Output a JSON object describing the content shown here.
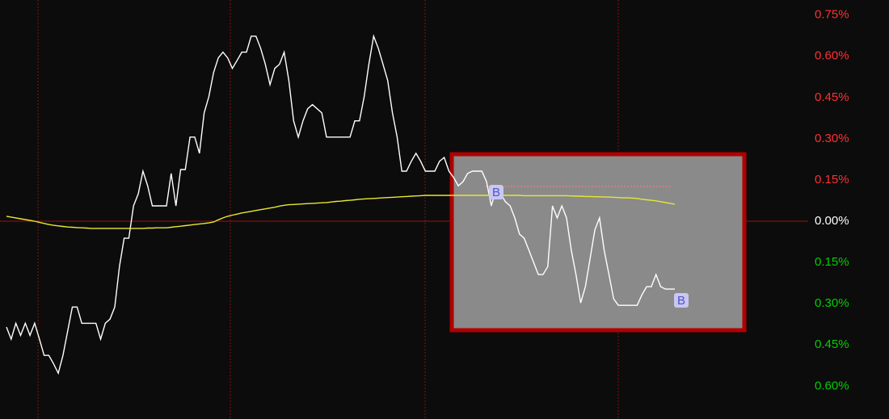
{
  "chart_data": {
    "type": "line",
    "ylim": [
      -0.69,
      0.79
    ],
    "yticks": [
      {
        "value": 0.75,
        "label": "0.75%"
      },
      {
        "value": 0.6,
        "label": "0.60%"
      },
      {
        "value": 0.45,
        "label": "0.45%"
      },
      {
        "value": 0.3,
        "label": "0.30%"
      },
      {
        "value": 0.15,
        "label": "0.15%"
      },
      {
        "value": 0,
        "label": "0.00%"
      },
      {
        "value": -0.15,
        "label": "0.15%"
      },
      {
        "value": -0.3,
        "label": "0.30%"
      },
      {
        "value": -0.45,
        "label": "0.45%"
      },
      {
        "value": -0.6,
        "label": "0.60%"
      }
    ],
    "positive_color": "#ff3030",
    "negative_color": "#00d000",
    "zero_color": "#ffffff",
    "annotations": [
      "B",
      "B"
    ],
    "series": [
      {
        "color": "#ffffff",
        "values": [
          -0.385,
          -0.429,
          -0.371,
          -0.415,
          -0.371,
          -0.415,
          -0.371,
          -0.429,
          -0.488,
          -0.488,
          -0.518,
          -0.553,
          -0.488,
          -0.4,
          -0.312,
          -0.312,
          -0.371,
          -0.371,
          -0.371,
          -0.371,
          -0.429,
          -0.371,
          -0.356,
          -0.312,
          -0.165,
          -0.062,
          -0.062,
          0.056,
          0.1,
          0.182,
          0.129,
          0.056,
          0.056,
          0.056,
          0.056,
          0.174,
          0.056,
          0.188,
          0.188,
          0.306,
          0.306,
          0.247,
          0.394,
          0.453,
          0.541,
          0.594,
          0.615,
          0.594,
          0.556,
          0.585,
          0.615,
          0.615,
          0.673,
          0.673,
          0.629,
          0.571,
          0.497,
          0.556,
          0.571,
          0.615,
          0.512,
          0.365,
          0.306,
          0.365,
          0.409,
          0.424,
          0.409,
          0.394,
          0.306,
          0.306,
          0.306,
          0.306,
          0.306,
          0.306,
          0.365,
          0.365,
          0.453,
          0.571,
          0.673,
          0.629,
          0.571,
          0.512,
          0.394,
          0.306,
          0.182,
          0.182,
          0.218,
          0.247,
          0.218,
          0.182,
          0.182,
          0.182,
          0.218,
          0.232,
          0.182,
          0.159,
          0.129,
          0.144,
          0.174,
          0.182,
          0.182,
          0.182,
          0.144,
          0.056,
          0.115,
          0.1,
          0.071,
          0.056,
          0.012,
          -0.047,
          -0.062,
          -0.106,
          -0.15,
          -0.194,
          -0.194,
          -0.165,
          0.056,
          0.012,
          0.056,
          0.012,
          -0.106,
          -0.194,
          -0.297,
          -0.238,
          -0.135,
          -0.032,
          0.012,
          -0.106,
          -0.194,
          -0.282,
          -0.306,
          -0.306,
          -0.306,
          -0.306,
          -0.306,
          -0.268,
          -0.238,
          -0.238,
          -0.194,
          -0.238,
          -0.247,
          -0.247,
          -0.247
        ]
      },
      {
        "color": "#e8e830",
        "values": [
          0.018,
          0.015,
          0.012,
          0.009,
          0.006,
          0.003,
          0.0,
          -0.004,
          -0.008,
          -0.012,
          -0.015,
          -0.017,
          -0.019,
          -0.021,
          -0.022,
          -0.023,
          -0.024,
          -0.025,
          -0.026,
          -0.026,
          -0.026,
          -0.026,
          -0.026,
          -0.026,
          -0.026,
          -0.026,
          -0.026,
          -0.026,
          -0.026,
          -0.026,
          -0.025,
          -0.025,
          -0.024,
          -0.024,
          -0.024,
          -0.022,
          -0.02,
          -0.018,
          -0.016,
          -0.014,
          -0.012,
          -0.01,
          -0.008,
          -0.006,
          -0.003,
          0.005,
          0.012,
          0.018,
          0.022,
          0.026,
          0.03,
          0.033,
          0.036,
          0.039,
          0.042,
          0.045,
          0.048,
          0.051,
          0.055,
          0.058,
          0.06,
          0.061,
          0.062,
          0.063,
          0.064,
          0.065,
          0.066,
          0.067,
          0.068,
          0.07,
          0.072,
          0.073,
          0.075,
          0.076,
          0.078,
          0.08,
          0.081,
          0.082,
          0.083,
          0.084,
          0.085,
          0.086,
          0.087,
          0.088,
          0.089,
          0.09,
          0.091,
          0.092,
          0.093,
          0.094,
          0.094,
          0.094,
          0.094,
          0.094,
          0.094,
          0.094,
          0.094,
          0.094,
          0.094,
          0.094,
          0.094,
          0.094,
          0.094,
          0.094,
          0.094,
          0.094,
          0.094,
          0.094,
          0.094,
          0.094,
          0.093,
          0.093,
          0.093,
          0.093,
          0.093,
          0.093,
          0.093,
          0.093,
          0.093,
          0.093,
          0.092,
          0.091,
          0.091,
          0.09,
          0.09,
          0.089,
          0.089,
          0.088,
          0.088,
          0.087,
          0.086,
          0.085,
          0.085,
          0.084,
          0.083,
          0.08,
          0.078,
          0.076,
          0.074,
          0.071,
          0.068,
          0.065,
          0.062
        ]
      }
    ]
  }
}
